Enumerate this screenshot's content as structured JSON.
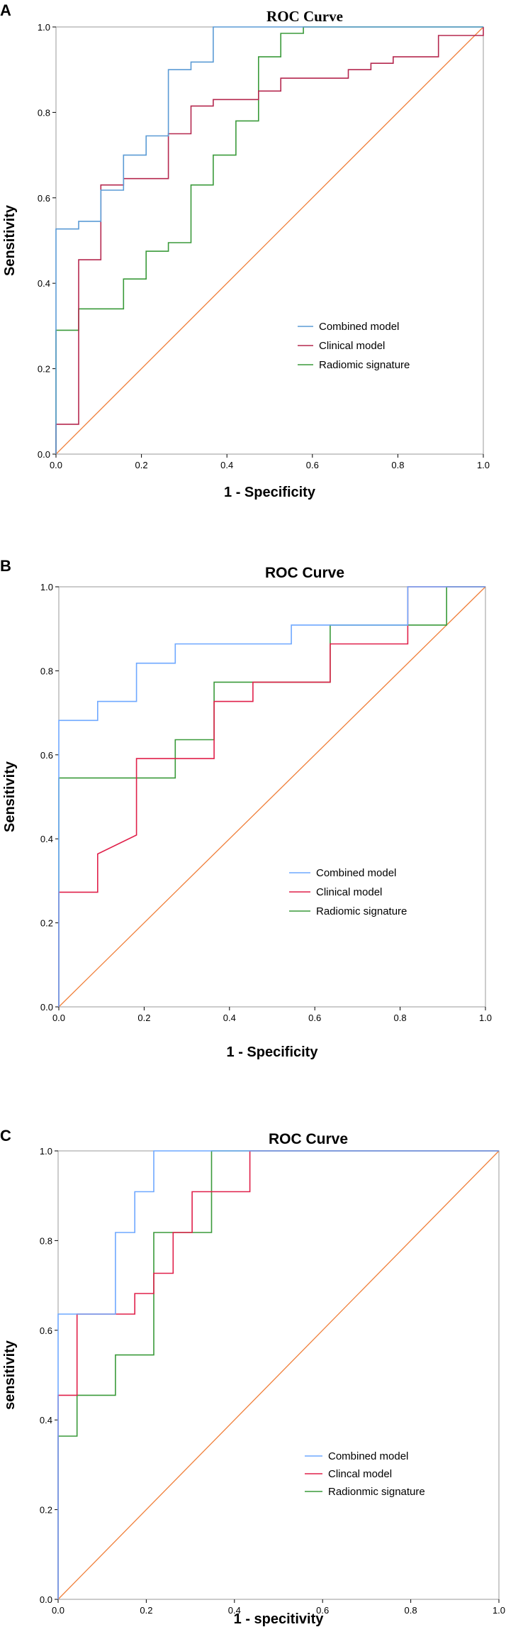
{
  "colors": {
    "combined_A": "#5b9bd5",
    "clinical_A": "#b5284f",
    "radiomic_A": "#3a9a3a",
    "combined": "#6fa8ff",
    "clinical": "#e0204a",
    "radiomic": "#3a9a3a",
    "diagonal": "#f07f3a"
  },
  "chart_data": [
    {
      "type": "line",
      "panel": "A",
      "title": "ROC Curve",
      "xlabel": "1 - Specificity",
      "ylabel": "Sensitivity",
      "xlim": [
        0,
        1
      ],
      "ylim": [
        0,
        1
      ],
      "xticks": [
        "0.0",
        "0.2",
        "0.4",
        "0.6",
        "0.8",
        "1.0"
      ],
      "yticks": [
        "0.0",
        "0.2",
        "0.4",
        "0.6",
        "0.8",
        "1.0"
      ],
      "legend": [
        "Combined model",
        "Clinical model",
        "Radiomic signature"
      ],
      "series": [
        {
          "name": "Combined model",
          "color": "combined_A",
          "x": [
            0,
            0,
            0.053,
            0.053,
            0.105,
            0.105,
            0.158,
            0.158,
            0.211,
            0.211,
            0.263,
            0.263,
            0.316,
            0.316,
            0.368,
            0.368,
            1.0
          ],
          "y": [
            0,
            0.527,
            0.527,
            0.545,
            0.545,
            0.618,
            0.618,
            0.7,
            0.7,
            0.745,
            0.745,
            0.9,
            0.9,
            0.918,
            0.918,
            1.0,
            1.0
          ]
        },
        {
          "name": "Clinical model",
          "color": "clinical_A",
          "x": [
            0,
            0,
            0.053,
            0.053,
            0.105,
            0.105,
            0.158,
            0.158,
            0.263,
            0.263,
            0.316,
            0.316,
            0.368,
            0.368,
            0.474,
            0.474,
            0.526,
            0.526,
            0.684,
            0.684,
            0.737,
            0.737,
            0.789,
            0.789,
            0.895,
            0.895,
            1.0,
            1.0
          ],
          "y": [
            0,
            0.07,
            0.07,
            0.455,
            0.455,
            0.63,
            0.63,
            0.645,
            0.645,
            0.75,
            0.75,
            0.815,
            0.815,
            0.83,
            0.83,
            0.85,
            0.85,
            0.88,
            0.88,
            0.9,
            0.9,
            0.915,
            0.915,
            0.93,
            0.93,
            0.98,
            0.98,
            1.0
          ]
        },
        {
          "name": "Radiomic signature",
          "color": "radiomic_A",
          "x": [
            0,
            0,
            0.053,
            0.053,
            0.158,
            0.158,
            0.211,
            0.211,
            0.263,
            0.263,
            0.316,
            0.316,
            0.368,
            0.368,
            0.421,
            0.421,
            0.474,
            0.474,
            0.526,
            0.526,
            0.579,
            0.579,
            1.0
          ],
          "y": [
            0,
            0.29,
            0.29,
            0.34,
            0.34,
            0.41,
            0.41,
            0.475,
            0.475,
            0.495,
            0.495,
            0.63,
            0.63,
            0.7,
            0.7,
            0.78,
            0.78,
            0.93,
            0.93,
            0.985,
            0.985,
            1.0,
            1.0
          ]
        }
      ]
    },
    {
      "type": "line",
      "panel": "B",
      "title": "ROC Curve",
      "xlabel": "1 - Specificity",
      "ylabel": "Sensitivity",
      "xlim": [
        0,
        1
      ],
      "ylim": [
        0,
        1
      ],
      "xticks": [
        "0.0",
        "0.2",
        "0.4",
        "0.6",
        "0.8",
        "1.0"
      ],
      "yticks": [
        "0.0",
        "0.2",
        "0.4",
        "0.6",
        "0.8",
        "1.0"
      ],
      "legend": [
        "Combined model",
        "Clinical model",
        "Radiomic signature"
      ],
      "series": [
        {
          "name": "Combined model",
          "color": "combined",
          "x": [
            0,
            0,
            0.091,
            0.091,
            0.182,
            0.182,
            0.273,
            0.273,
            0.545,
            0.545,
            0.818,
            0.818,
            1.0
          ],
          "y": [
            0,
            0.682,
            0.682,
            0.727,
            0.727,
            0.818,
            0.818,
            0.864,
            0.864,
            0.909,
            0.909,
            1.0,
            1.0
          ]
        },
        {
          "name": "Clinical model",
          "color": "clinical",
          "x": [
            0,
            0,
            0.091,
            0.091,
            0.182,
            0.182,
            0.364,
            0.364,
            0.455,
            0.455,
            0.636,
            0.636,
            0.818,
            0.818,
            1.0
          ],
          "y": [
            0,
            0.273,
            0.273,
            0.364,
            0.409,
            0.591,
            0.591,
            0.727,
            0.727,
            0.773,
            0.773,
            0.864,
            0.864,
            1.0,
            1.0
          ]
        },
        {
          "name": "Radiomic signature",
          "color": "radiomic",
          "x": [
            0,
            0,
            0.273,
            0.273,
            0.364,
            0.364,
            0.636,
            0.636,
            0.909,
            0.909,
            1.0
          ],
          "y": [
            0,
            0.545,
            0.545,
            0.636,
            0.636,
            0.773,
            0.773,
            0.909,
            0.909,
            1.0,
            1.0
          ]
        }
      ]
    },
    {
      "type": "line",
      "panel": "C",
      "title": "ROC Curve",
      "xlabel": "1 - specitivity",
      "ylabel": "sensitivity",
      "xlim": [
        0,
        1
      ],
      "ylim": [
        0,
        1
      ],
      "xticks": [
        "0.0",
        "0.2",
        "0.4",
        "0.6",
        "0.8",
        "1.0"
      ],
      "yticks": [
        "0.0",
        "0.2",
        "0.4",
        "0.6",
        "0.8",
        "1.0"
      ],
      "legend": [
        "Combined model",
        "Clincal model",
        "Radionmic signature"
      ],
      "series": [
        {
          "name": "Combined model",
          "color": "combined",
          "x": [
            0,
            0,
            0.13,
            0.13,
            0.174,
            0.174,
            0.217,
            0.217,
            1.0
          ],
          "y": [
            0,
            0.636,
            0.636,
            0.818,
            0.818,
            0.909,
            0.909,
            1.0,
            1.0
          ]
        },
        {
          "name": "Clincal model",
          "color": "clinical",
          "x": [
            0,
            0,
            0.043,
            0.043,
            0.174,
            0.174,
            0.217,
            0.217,
            0.261,
            0.261,
            0.304,
            0.304,
            0.435,
            0.435,
            1.0
          ],
          "y": [
            0,
            0.455,
            0.455,
            0.636,
            0.636,
            0.682,
            0.682,
            0.727,
            0.727,
            0.818,
            0.818,
            0.909,
            0.909,
            1.0,
            1.0
          ]
        },
        {
          "name": "Radionmic signature",
          "color": "radiomic",
          "x": [
            0,
            0,
            0.043,
            0.043,
            0.13,
            0.13,
            0.217,
            0.217,
            0.348,
            0.348,
            1.0
          ],
          "y": [
            0,
            0.364,
            0.364,
            0.455,
            0.455,
            0.545,
            0.545,
            0.818,
            0.818,
            1.0,
            1.0
          ]
        }
      ]
    }
  ]
}
